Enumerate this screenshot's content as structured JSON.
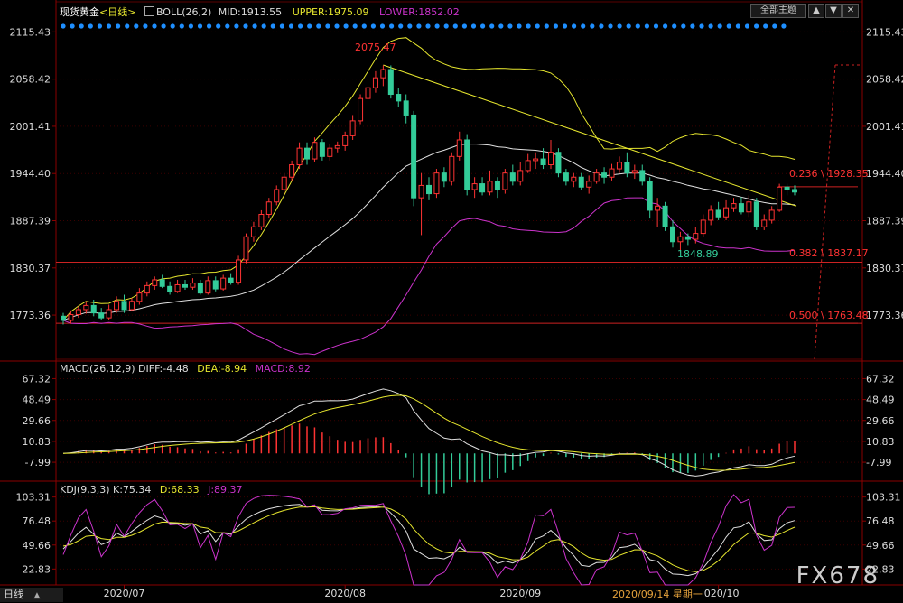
{
  "header": {
    "symbol": "现货黄金",
    "period": "<日线>",
    "boll_params": "BOLL(26,2)",
    "mid": "MID:1913.55",
    "upper": "UPPER:1975.09",
    "lower": "LOWER:1852.02",
    "btn_all": "全部主题",
    "btn_up": "▲",
    "btn_down": "▼"
  },
  "macd_header": {
    "params": "MACD(26,12,9)",
    "diff": "DIFF:-4.48",
    "dea": "DEA:-8.94",
    "macd": "MACD:8.92"
  },
  "kdj_header": {
    "params": "KDJ(9,3,3)",
    "k": "K:75.34",
    "d": "D:68.33",
    "j": "J:89.37"
  },
  "annotations": {
    "peak": "2075.47",
    "trough": "1848.89",
    "fib236": "0.236 \\ 1928.35",
    "fib382": "0.382 \\ 1837.17",
    "fib500": "0.500 \\ 1763.48"
  },
  "status": {
    "mode": "日线",
    "crosshair_date": "2020/09/14 星期一"
  },
  "watermark": "FX678",
  "colors": {
    "bg": "#000000",
    "up": "#ff3333",
    "down": "#33cc99",
    "mid_line": "#e0e0e0",
    "upper_line": "#e6e62e",
    "lower_line": "#cc33cc",
    "fib_line": "#cc2222",
    "grid": "#3a0000",
    "axis_text": "#dddddd",
    "dots": "#1e8fff"
  },
  "chart_data": [
    {
      "type": "candlestick",
      "title": "现货黄金",
      "ylim": [
        1720,
        2130
      ],
      "y_ticks": [
        2115.43,
        2058.42,
        2001.41,
        1944.4,
        1887.39,
        1830.37,
        1773.36
      ],
      "x_labels": [
        "2020/07",
        "2020/08",
        "2020/09",
        "2020/10"
      ],
      "candles": [
        [
          1772,
          1767,
          1776,
          1762
        ],
        [
          1767,
          1774,
          1779,
          1763
        ],
        [
          1774,
          1780,
          1784,
          1770
        ],
        [
          1780,
          1785,
          1790,
          1775
        ],
        [
          1785,
          1776,
          1792,
          1772
        ],
        [
          1776,
          1770,
          1782,
          1768
        ],
        [
          1770,
          1780,
          1786,
          1768
        ],
        [
          1780,
          1790,
          1796,
          1776
        ],
        [
          1790,
          1780,
          1798,
          1776
        ],
        [
          1780,
          1790,
          1794,
          1778
        ],
        [
          1790,
          1800,
          1806,
          1786
        ],
        [
          1800,
          1809,
          1814,
          1796
        ],
        [
          1809,
          1816,
          1820,
          1804
        ],
        [
          1816,
          1808,
          1822,
          1806
        ],
        [
          1808,
          1802,
          1814,
          1798
        ],
        [
          1802,
          1810,
          1816,
          1800
        ],
        [
          1810,
          1807,
          1816,
          1804
        ],
        [
          1807,
          1812,
          1818,
          1804
        ],
        [
          1812,
          1800,
          1816,
          1798
        ],
        [
          1800,
          1815,
          1820,
          1798
        ],
        [
          1815,
          1805,
          1820,
          1802
        ],
        [
          1805,
          1818,
          1822,
          1803
        ],
        [
          1818,
          1813,
          1824,
          1810
        ],
        [
          1813,
          1840,
          1845,
          1810
        ],
        [
          1840,
          1868,
          1872,
          1836
        ],
        [
          1868,
          1880,
          1886,
          1862
        ],
        [
          1880,
          1895,
          1900,
          1876
        ],
        [
          1895,
          1910,
          1915,
          1890
        ],
        [
          1910,
          1925,
          1930,
          1906
        ],
        [
          1925,
          1940,
          1945,
          1920
        ],
        [
          1940,
          1955,
          1960,
          1935
        ],
        [
          1955,
          1975,
          1982,
          1950
        ],
        [
          1975,
          1962,
          1982,
          1955
        ],
        [
          1962,
          1982,
          1988,
          1958
        ],
        [
          1982,
          1965,
          1986,
          1960
        ],
        [
          1965,
          1975,
          1980,
          1960
        ],
        [
          1975,
          1978,
          1983,
          1970
        ],
        [
          1978,
          1990,
          1995,
          1972
        ],
        [
          1990,
          2008,
          2015,
          1985
        ],
        [
          2008,
          2035,
          2040,
          2004
        ],
        [
          2035,
          2048,
          2055,
          2030
        ],
        [
          2048,
          2060,
          2068,
          2042
        ],
        [
          2060,
          2070,
          2075,
          2050
        ],
        [
          2070,
          2040,
          2075,
          2035
        ],
        [
          2040,
          2032,
          2048,
          2025
        ],
        [
          2032,
          2015,
          2040,
          2005
        ],
        [
          2015,
          1915,
          2020,
          1905
        ],
        [
          1915,
          1930,
          1945,
          1870
        ],
        [
          1930,
          1920,
          1940,
          1912
        ],
        [
          1920,
          1945,
          1950,
          1915
        ],
        [
          1945,
          1935,
          1952,
          1928
        ],
        [
          1935,
          1965,
          1970,
          1930
        ],
        [
          1965,
          1985,
          1995,
          1960
        ],
        [
          1985,
          1925,
          1992,
          1918
        ],
        [
          1925,
          1932,
          1940,
          1915
        ],
        [
          1932,
          1922,
          1940,
          1918
        ],
        [
          1922,
          1935,
          1948,
          1918
        ],
        [
          1935,
          1925,
          1940,
          1915
        ],
        [
          1925,
          1945,
          1950,
          1920
        ],
        [
          1945,
          1935,
          1955,
          1930
        ],
        [
          1935,
          1948,
          1958,
          1930
        ],
        [
          1948,
          1960,
          1968,
          1945
        ],
        [
          1960,
          1962,
          1970,
          1950
        ],
        [
          1962,
          1955,
          1975,
          1950
        ],
        [
          1955,
          1970,
          1985,
          1950
        ],
        [
          1970,
          1945,
          1975,
          1940
        ],
        [
          1945,
          1935,
          1950,
          1930
        ],
        [
          1935,
          1940,
          1945,
          1928
        ],
        [
          1940,
          1928,
          1945,
          1925
        ],
        [
          1928,
          1935,
          1942,
          1920
        ],
        [
          1935,
          1945,
          1950,
          1932
        ],
        [
          1945,
          1940,
          1952,
          1932
        ],
        [
          1940,
          1950,
          1956,
          1936
        ],
        [
          1950,
          1958,
          1965,
          1945
        ],
        [
          1958,
          1945,
          1970,
          1940
        ],
        [
          1945,
          1948,
          1955,
          1938
        ],
        [
          1948,
          1935,
          1955,
          1930
        ],
        [
          1935,
          1900,
          1940,
          1890
        ],
        [
          1900,
          1905,
          1915,
          1880
        ],
        [
          1905,
          1880,
          1910,
          1875
        ],
        [
          1880,
          1862,
          1888,
          1855
        ],
        [
          1862,
          1868,
          1874,
          1849
        ],
        [
          1868,
          1865,
          1872,
          1858
        ],
        [
          1865,
          1872,
          1880,
          1860
        ],
        [
          1872,
          1888,
          1895,
          1868
        ],
        [
          1888,
          1900,
          1906,
          1882
        ],
        [
          1900,
          1892,
          1910,
          1888
        ],
        [
          1892,
          1903,
          1912,
          1888
        ],
        [
          1903,
          1908,
          1915,
          1898
        ],
        [
          1908,
          1898,
          1916,
          1895
        ],
        [
          1898,
          1910,
          1918,
          1892
        ],
        [
          1910,
          1880,
          1915,
          1876
        ],
        [
          1880,
          1888,
          1895,
          1876
        ],
        [
          1888,
          1900,
          1905,
          1884
        ],
        [
          1900,
          1928,
          1932,
          1898
        ],
        [
          1928,
          1925,
          1932,
          1918
        ],
        [
          1925,
          1922,
          1930,
          1918
        ]
      ],
      "fib_levels": [
        1928.35,
        1837.17,
        1763.48
      ]
    },
    {
      "type": "bar+line",
      "title": "MACD(26,12,9)",
      "ylim": [
        -25,
        75
      ],
      "y_ticks": [
        67.32,
        48.49,
        29.66,
        10.83,
        -7.99
      ]
    },
    {
      "type": "line",
      "title": "KDJ(9,3,3)",
      "ylim": [
        5,
        110
      ],
      "y_ticks": [
        103.31,
        76.48,
        49.66,
        22.83
      ]
    }
  ]
}
